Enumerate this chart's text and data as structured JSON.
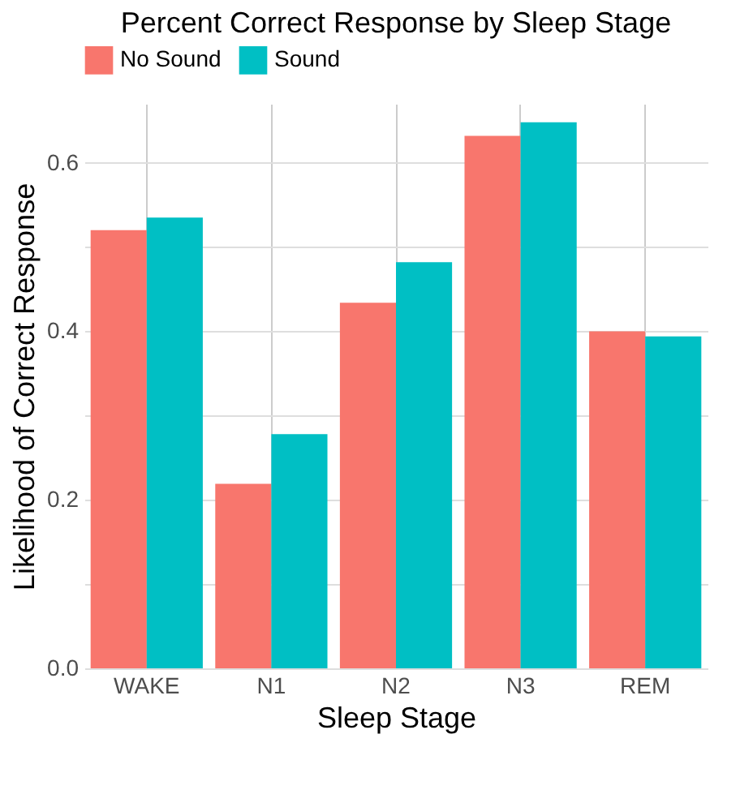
{
  "chart_data": {
    "type": "bar",
    "title": "Percent Correct Response by Sleep Stage",
    "xlabel": "Sleep Stage",
    "ylabel": "Likelihood of Correct Response",
    "categories": [
      "WAKE",
      "N1",
      "N2",
      "N3",
      "REM"
    ],
    "series": [
      {
        "name": "No Sound",
        "color": "#f8766d",
        "values": [
          0.52,
          0.219,
          0.434,
          0.632,
          0.4
        ]
      },
      {
        "name": "Sound",
        "color": "#00bfc4",
        "values": [
          0.535,
          0.278,
          0.482,
          0.648,
          0.394
        ]
      }
    ],
    "ylim": [
      0,
      0.67
    ],
    "yticks": [
      {
        "value": 0,
        "label": "0.0"
      },
      {
        "value": 0.1,
        "label": null
      },
      {
        "value": 0.2,
        "label": "0.2"
      },
      {
        "value": 0.3,
        "label": null
      },
      {
        "value": 0.4,
        "label": "0.4"
      },
      {
        "value": 0.5,
        "label": null
      },
      {
        "value": 0.6,
        "label": "0.6"
      }
    ],
    "grid": true,
    "legend": "top"
  }
}
